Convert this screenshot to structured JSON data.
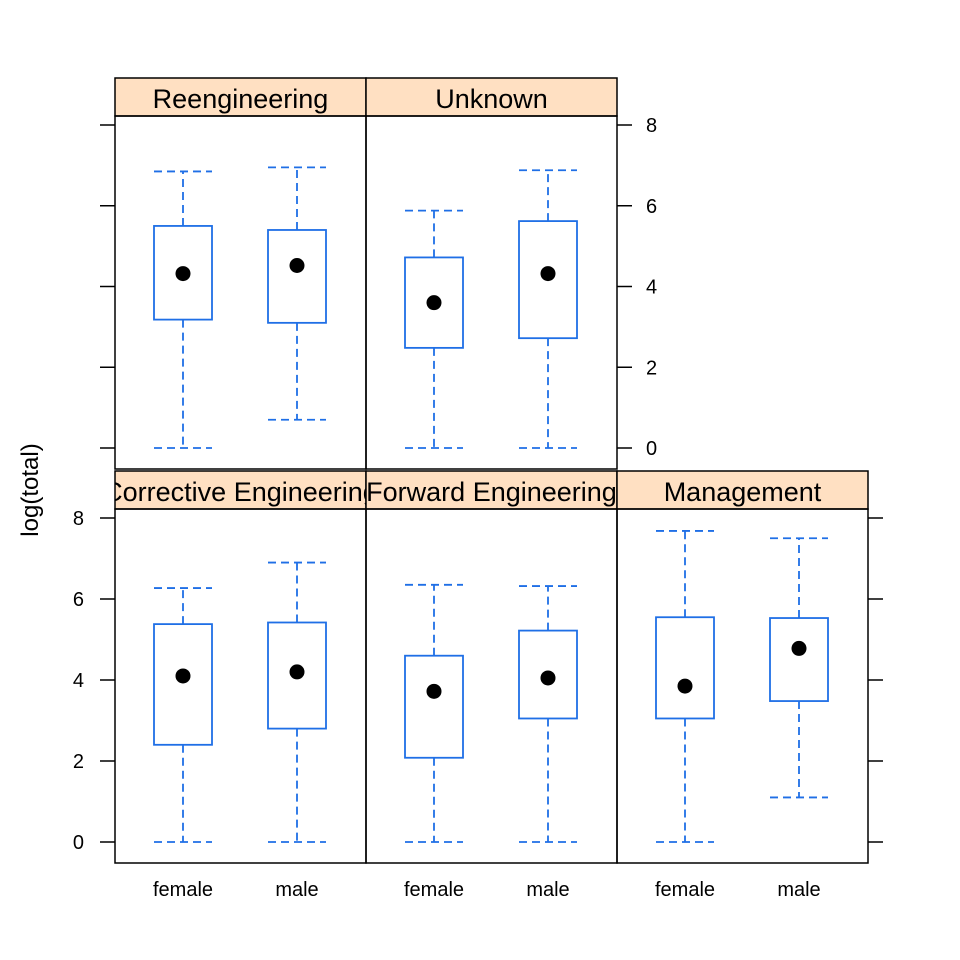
{
  "chart_data": {
    "type": "box",
    "ylabel": "log(total)",
    "ylim": [
      0,
      8
    ],
    "yticks": [
      0,
      2,
      4,
      6,
      8
    ],
    "groups": [
      "female",
      "male"
    ],
    "layout": "3 columns x 2 rows (lattice bwplot)",
    "colors": {
      "box": "#1f6fe6",
      "strip": "#ffe0c2",
      "dot": "#000000"
    },
    "panels": [
      {
        "label": "Corrective Engineering",
        "boxes": [
          {
            "group": "female",
            "whisker_low": 0,
            "q1": 2.4,
            "median": 4.1,
            "q3": 5.38,
            "whisker_high": 6.27
          },
          {
            "group": "male",
            "whisker_low": 0,
            "q1": 2.8,
            "median": 4.2,
            "q3": 5.42,
            "whisker_high": 6.9
          }
        ]
      },
      {
        "label": "Forward Engineering",
        "boxes": [
          {
            "group": "female",
            "whisker_low": 0,
            "q1": 2.08,
            "median": 3.72,
            "q3": 4.6,
            "whisker_high": 6.35
          },
          {
            "group": "male",
            "whisker_low": 0,
            "q1": 3.05,
            "median": 4.05,
            "q3": 5.22,
            "whisker_high": 6.32
          }
        ]
      },
      {
        "label": "Management",
        "boxes": [
          {
            "group": "female",
            "whisker_low": 0,
            "q1": 3.05,
            "median": 3.85,
            "q3": 5.55,
            "whisker_high": 7.68
          },
          {
            "group": "male",
            "whisker_low": 1.1,
            "q1": 3.48,
            "median": 4.78,
            "q3": 5.53,
            "whisker_high": 7.5
          }
        ]
      },
      {
        "label": "Reengineering",
        "boxes": [
          {
            "group": "female",
            "whisker_low": 0,
            "q1": 3.18,
            "median": 4.32,
            "q3": 5.5,
            "whisker_high": 6.85
          },
          {
            "group": "male",
            "whisker_low": 0.7,
            "q1": 3.1,
            "median": 4.52,
            "q3": 5.4,
            "whisker_high": 6.95
          }
        ]
      },
      {
        "label": "Unknown",
        "boxes": [
          {
            "group": "female",
            "whisker_low": 0,
            "q1": 2.48,
            "median": 3.6,
            "q3": 4.72,
            "whisker_high": 5.88
          },
          {
            "group": "male",
            "whisker_low": 0,
            "q1": 2.72,
            "median": 4.32,
            "q3": 5.62,
            "whisker_high": 6.88
          }
        ]
      }
    ]
  }
}
